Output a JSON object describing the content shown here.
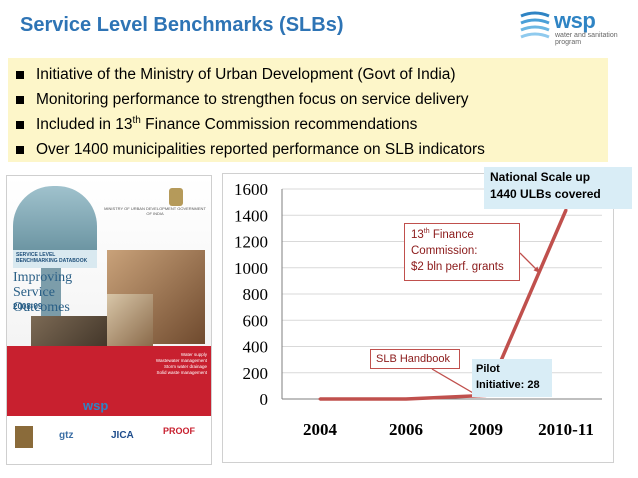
{
  "slide": {
    "title": "Service Level Benchmarks (SLBs)",
    "logo": {
      "name": "wsp",
      "subtitle": "water and sanitation program",
      "brand_color": "#2f84c4"
    },
    "bullets": [
      {
        "text": "Initiative of the Ministry of Urban Development (Govt of India)"
      },
      {
        "text": "Monitoring performance to strengthen focus on service delivery"
      },
      {
        "text_pre": "Included in 13",
        "sup": "th",
        "text_post": " Finance Commission recommendations"
      },
      {
        "text": "Over 1400 municipalities reported performance on SLB indicators"
      }
    ],
    "accent_color": "#2e74b5",
    "bullet_bg": "#fdf6c9"
  },
  "cover": {
    "ministry": "MINISTRY OF URBAN DEVELOPMENT GOVERNMENT OF INDIA",
    "tag": "SERVICE LEVEL BENCHMARKING DATABOOK",
    "title": "Improving Service Outcomes",
    "year": "2008-09",
    "sectors": [
      "Water supply",
      "Wastewater management",
      "Storm water drainage",
      "Solid waste management"
    ],
    "wsp": "wsp",
    "partners": [
      "gtz",
      "JICA",
      "PROOF"
    ]
  },
  "chart_data": {
    "type": "line",
    "categories": [
      "2004",
      "2006",
      "2009",
      "2010-11"
    ],
    "series": [
      {
        "values": [
          0,
          0,
          28,
          1440
        ],
        "color": "#c0504d"
      }
    ],
    "y_ticks": [
      "0",
      "200",
      "400",
      "600",
      "800",
      "1000",
      "1200",
      "1400",
      "1600"
    ],
    "ylim": [
      0,
      1600
    ],
    "grid": true,
    "callouts": {
      "national": {
        "line1": "National Scale up",
        "line2": "1440 ULBs covered"
      },
      "finance": {
        "line1_pre": "13",
        "line1_sup": "th",
        "line1_post": " Finance",
        "line2": "Commission:",
        "line3": "$2 bln  perf. grants"
      },
      "handbook": {
        "text": "SLB Handbook"
      },
      "pilot": {
        "line1": "Pilot",
        "line2": "Initiative: 28"
      }
    }
  }
}
